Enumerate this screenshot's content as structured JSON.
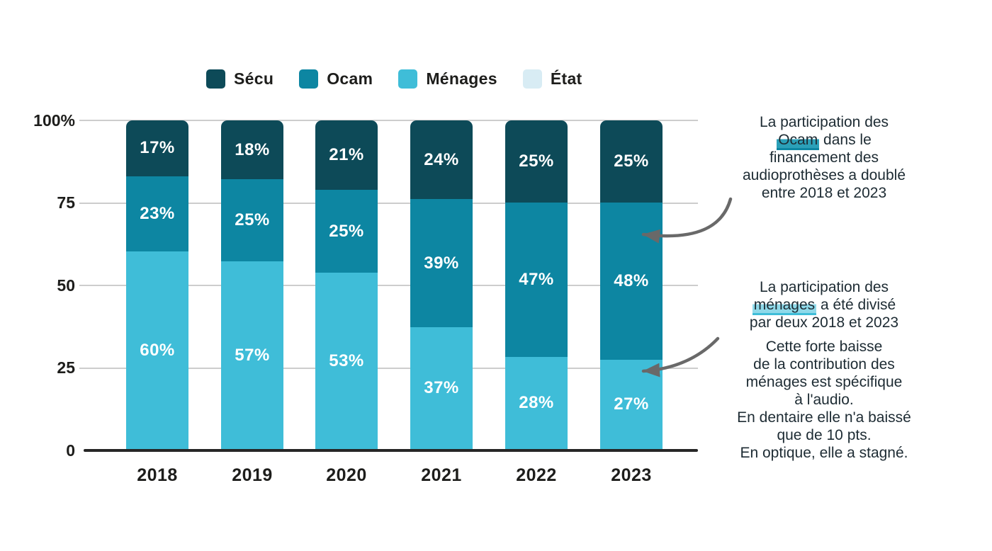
{
  "chart_data": {
    "type": "bar",
    "variant": "stacked-percent",
    "categories": [
      "2018",
      "2019",
      "2020",
      "2021",
      "2022",
      "2023"
    ],
    "series": [
      {
        "name": "Sécu",
        "key": "secu",
        "color": "#0D4A58",
        "values": [
          17,
          18,
          21,
          24,
          25,
          25
        ]
      },
      {
        "name": "Ocam",
        "key": "ocam",
        "color": "#0D86A2",
        "values": [
          23,
          25,
          25,
          39,
          47,
          48
        ]
      },
      {
        "name": "Ménages",
        "key": "menages",
        "color": "#3FBDD8",
        "values": [
          60,
          57,
          53,
          37,
          28,
          27
        ]
      },
      {
        "name": "État",
        "key": "etat",
        "color": "#D8ECF4",
        "values": [
          0.5,
          0.5,
          0.5,
          0.5,
          0.5,
          0.5
        ],
        "labels_hidden": true
      }
    ],
    "value_suffix": "%",
    "y_axis": {
      "range": [
        0,
        100
      ],
      "ticks": [
        {
          "label": "100%",
          "value": 100
        },
        {
          "label": "75",
          "value": 75
        },
        {
          "label": "50",
          "value": 50
        },
        {
          "label": "25",
          "value": 25
        },
        {
          "label": "0",
          "value": 0
        }
      ]
    },
    "legend_position": "top",
    "grid": true
  },
  "annotations": [
    {
      "key": "ocam-note",
      "arrow_target": "2023 Ocam segment",
      "parts": [
        {
          "text": "La participation des"
        },
        {
          "br": true
        },
        {
          "text": "Ocam",
          "highlight": "ocam"
        },
        {
          "text": " dans le"
        },
        {
          "br": true
        },
        {
          "text": "financement des"
        },
        {
          "br": true
        },
        {
          "text": "audioprothèses a doublé"
        },
        {
          "br": true
        },
        {
          "text": "entre 2018 et 2023"
        }
      ]
    },
    {
      "key": "menages-note",
      "arrow_target": "2023 Ménages segment",
      "parts": [
        {
          "text": "La participation des"
        },
        {
          "br": true
        },
        {
          "text": "ménages",
          "highlight": "menages"
        },
        {
          "text": " a été divisé"
        },
        {
          "br": true
        },
        {
          "text": "par deux 2018 et 2023"
        }
      ]
    },
    {
      "key": "menages-detail",
      "parts": [
        {
          "text": "Cette forte baisse"
        },
        {
          "br": true
        },
        {
          "text": "de la contribution des"
        },
        {
          "br": true
        },
        {
          "text": "ménages est spécifique"
        },
        {
          "br": true
        },
        {
          "text": "à l'audio."
        },
        {
          "br": true
        },
        {
          "text": "En dentaire elle n'a baissé"
        },
        {
          "br": true
        },
        {
          "text": "que de 10 pts."
        },
        {
          "br": true
        },
        {
          "text": "En optique, elle a stagné."
        }
      ]
    }
  ],
  "colors": {
    "grid": "#CDCDCD",
    "axis": "#262626",
    "text": "#1D1D1B",
    "bar_label": "#FFFFFF",
    "arrow": "#696969",
    "background": "#FFFFFF"
  }
}
